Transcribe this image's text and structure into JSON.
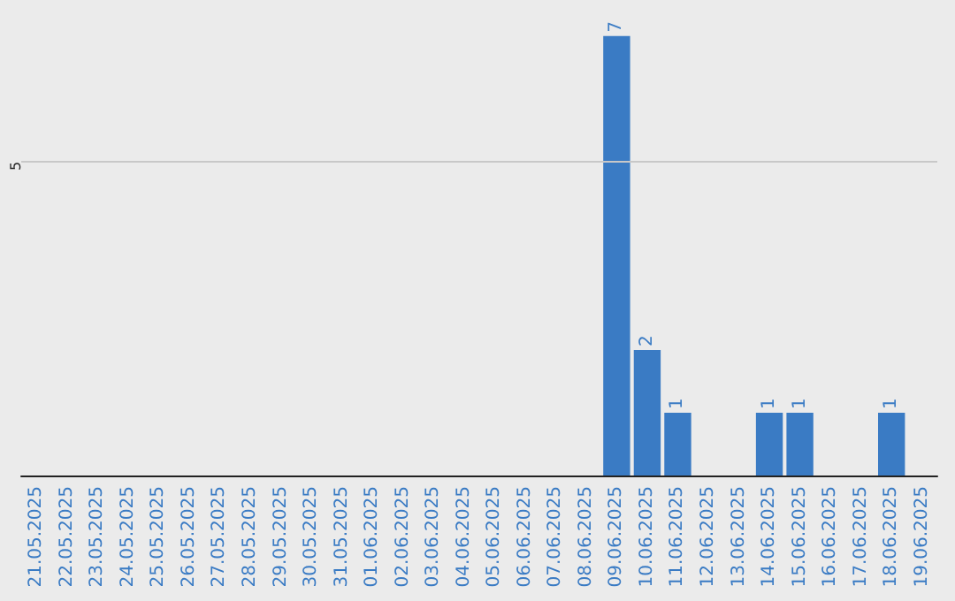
{
  "chart_data": {
    "type": "bar",
    "categories": [
      "21.05.2025",
      "22.05.2025",
      "23.05.2025",
      "24.05.2025",
      "25.05.2025",
      "26.05.2025",
      "27.05.2025",
      "28.05.2025",
      "29.05.2025",
      "30.05.2025",
      "31.05.2025",
      "01.06.2025",
      "02.06.2025",
      "03.06.2025",
      "04.06.2025",
      "05.06.2025",
      "06.06.2025",
      "07.06.2025",
      "08.06.2025",
      "09.06.2025",
      "10.06.2025",
      "11.06.2025",
      "12.06.2025",
      "13.06.2025",
      "14.06.2025",
      "15.06.2025",
      "16.06.2025",
      "17.06.2025",
      "18.06.2025",
      "19.06.2025"
    ],
    "values": [
      null,
      null,
      null,
      null,
      null,
      null,
      null,
      null,
      null,
      null,
      null,
      null,
      null,
      null,
      null,
      null,
      null,
      null,
      null,
      7,
      2,
      1,
      null,
      null,
      1,
      1,
      null,
      null,
      1,
      null
    ],
    "data_labels": true,
    "color": "#3a7bc4",
    "ref_lines": [
      {
        "axis": "y",
        "value": 5,
        "label": "5",
        "color": "#c8c8c8"
      }
    ],
    "tick_labels": "x"
  }
}
